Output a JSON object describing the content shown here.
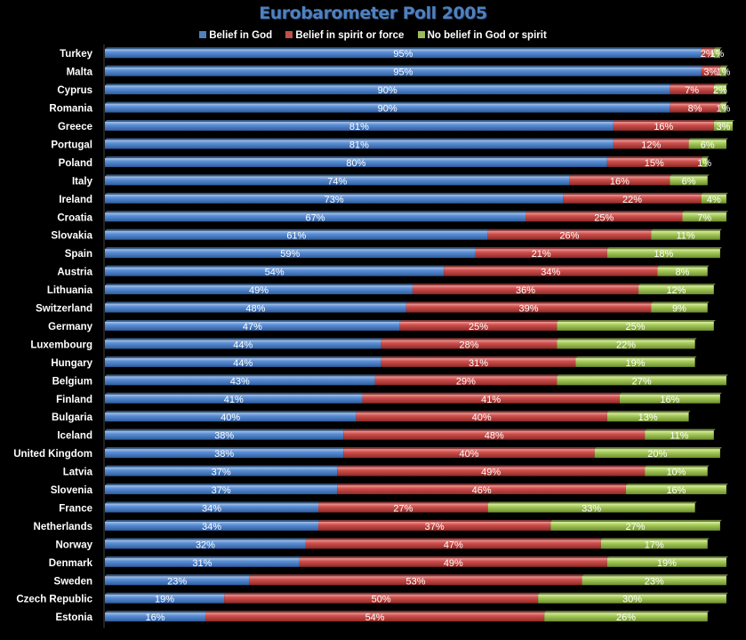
{
  "chart_data": {
    "type": "bar",
    "orientation": "horizontal",
    "stacked": true,
    "title": "Eurobarometer Poll 2005",
    "xlabel": "",
    "ylabel": "",
    "xlim": [
      0,
      100
    ],
    "legend_position": "top",
    "categories": [
      "Turkey",
      "Malta",
      "Cyprus",
      "Romania",
      "Greece",
      "Portugal",
      "Poland",
      "Italy",
      "Ireland",
      "Croatia",
      "Slovakia",
      "Spain",
      "Austria",
      "Lithuania",
      "Switzerland",
      "Germany",
      "Luxembourg",
      "Hungary",
      "Belgium",
      "Finland",
      "Bulgaria",
      "Iceland",
      "United Kingdom",
      "Latvia",
      "Slovenia",
      "France",
      "Netherlands",
      "Norway",
      "Denmark",
      "Sweden",
      "Czech Republic",
      "Estonia"
    ],
    "series": [
      {
        "name": "Belief in God",
        "color": "#4f81bd",
        "values": [
          95,
          95,
          90,
          90,
          81,
          81,
          80,
          74,
          73,
          67,
          61,
          59,
          54,
          49,
          48,
          47,
          44,
          44,
          43,
          41,
          40,
          38,
          38,
          37,
          37,
          34,
          34,
          32,
          31,
          23,
          19,
          16
        ]
      },
      {
        "name": "Belief in spirit or force",
        "color": "#c0504d",
        "values": [
          2,
          3,
          7,
          8,
          16,
          12,
          15,
          16,
          22,
          25,
          26,
          21,
          34,
          36,
          39,
          25,
          28,
          31,
          29,
          41,
          40,
          48,
          40,
          49,
          46,
          27,
          37,
          47,
          49,
          53,
          50,
          54
        ]
      },
      {
        "name": "No belief in God or spirit",
        "color": "#9bbb59",
        "values": [
          1,
          1,
          2,
          1,
          3,
          6,
          1,
          6,
          4,
          7,
          11,
          18,
          8,
          12,
          9,
          25,
          22,
          19,
          27,
          16,
          13,
          11,
          20,
          10,
          16,
          33,
          27,
          17,
          19,
          23,
          30,
          26
        ]
      }
    ],
    "value_suffix": "%"
  }
}
